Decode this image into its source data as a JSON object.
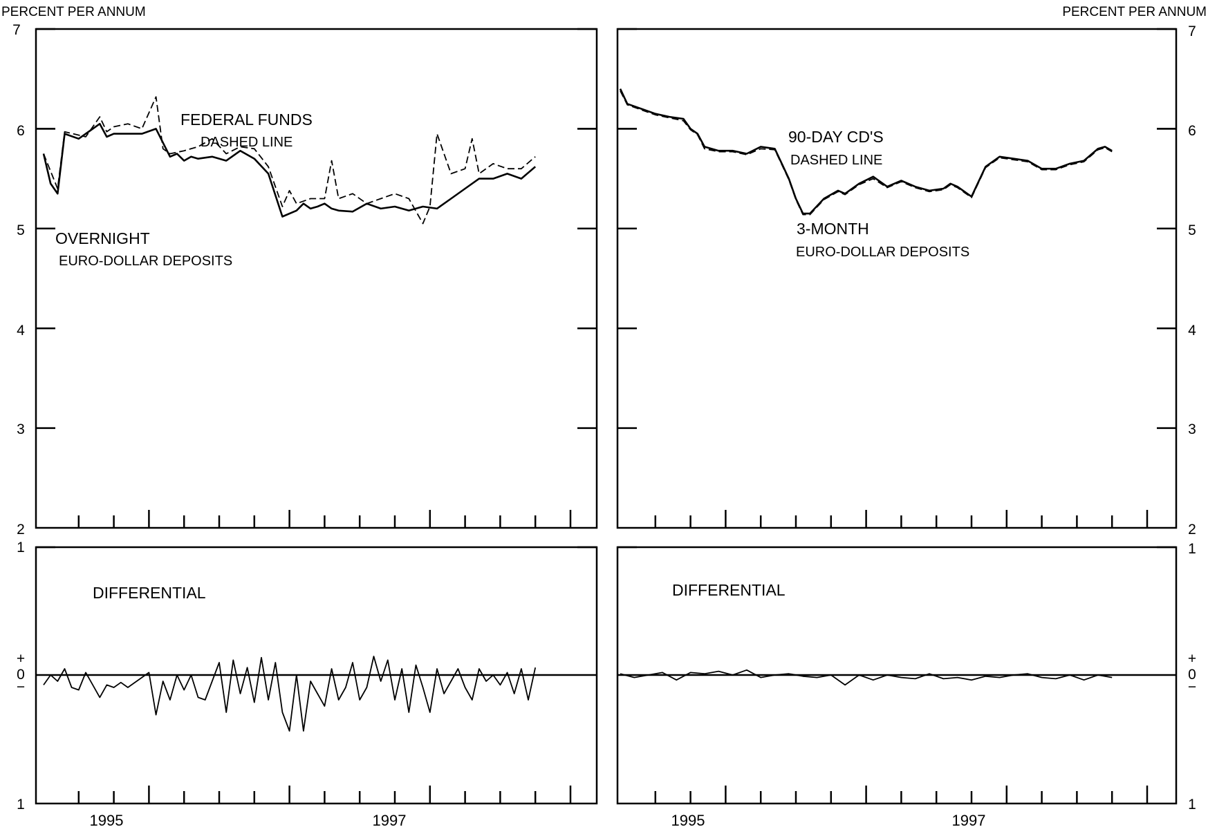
{
  "chart_data": [
    {
      "type": "line",
      "title": "",
      "ylabel": "PERCENT PER ANNUM",
      "xlabel": "",
      "xlim": [
        1994,
        1999.5
      ],
      "ylim": [
        2,
        7
      ],
      "yticks": [
        "2",
        "3",
        "4",
        "5",
        "6",
        "7"
      ],
      "xticks": [
        "1995",
        "1997"
      ],
      "annotations": [
        "FEDERAL FUNDS",
        "DASHED LINE",
        "OVERNIGHT",
        "EURO-DOLLAR DEPOSITS"
      ],
      "series": [
        {
          "name": "OVERNIGHT EURO-DOLLAR DEPOSITS",
          "style": "solid",
          "x": [
            1994.0,
            1994.05,
            1994.1,
            1994.15,
            1994.25,
            1994.3,
            1994.4,
            1994.45,
            1994.5,
            1994.6,
            1994.7,
            1994.8,
            1994.9,
            1994.95,
            1995.0,
            1995.05,
            1995.1,
            1995.2,
            1995.3,
            1995.4,
            1995.5,
            1995.6,
            1995.7,
            1995.8,
            1995.85,
            1995.9,
            1995.95,
            1996.0,
            1996.05,
            1996.1,
            1996.2,
            1996.3,
            1996.4,
            1996.5,
            1996.6,
            1996.7,
            1996.8,
            1996.9,
            1997.0,
            1997.1,
            1997.2,
            1997.3,
            1997.4,
            1997.5
          ],
          "values": [
            5.75,
            5.45,
            5.35,
            5.95,
            5.9,
            5.95,
            6.05,
            5.92,
            5.95,
            5.95,
            5.95,
            6.0,
            5.72,
            5.75,
            5.68,
            5.72,
            5.7,
            5.72,
            5.68,
            5.78,
            5.7,
            5.55,
            5.12,
            5.18,
            5.25,
            5.2,
            5.22,
            5.25,
            5.2,
            5.18,
            5.17,
            5.25,
            5.2,
            5.22,
            5.18,
            5.22,
            5.2,
            5.3,
            5.4,
            5.5,
            5.5,
            5.55,
            5.5,
            5.62
          ]
        },
        {
          "name": "FEDERAL FUNDS",
          "style": "dashed",
          "x": [
            1994.0,
            1994.1,
            1994.15,
            1994.3,
            1994.4,
            1994.45,
            1994.5,
            1994.6,
            1994.7,
            1994.8,
            1994.85,
            1994.9,
            1995.0,
            1995.1,
            1995.2,
            1995.3,
            1995.4,
            1995.5,
            1995.6,
            1995.7,
            1995.75,
            1995.8,
            1995.9,
            1996.0,
            1996.05,
            1996.1,
            1996.2,
            1996.3,
            1996.4,
            1996.5,
            1996.6,
            1996.7,
            1996.75,
            1996.8,
            1996.9,
            1997.0,
            1997.05,
            1997.1,
            1997.2,
            1997.3,
            1997.4,
            1997.5
          ],
          "values": [
            5.75,
            5.4,
            5.97,
            5.92,
            6.12,
            5.97,
            6.02,
            6.05,
            6.0,
            6.32,
            5.8,
            5.75,
            5.78,
            5.82,
            5.9,
            5.75,
            5.82,
            5.8,
            5.62,
            5.22,
            5.38,
            5.25,
            5.3,
            5.3,
            5.68,
            5.3,
            5.35,
            5.25,
            5.3,
            5.35,
            5.3,
            5.05,
            5.22,
            5.95,
            5.55,
            5.6,
            5.9,
            5.55,
            5.65,
            5.6,
            5.6,
            5.72
          ]
        }
      ]
    },
    {
      "type": "line",
      "title": "",
      "ylabel": "PERCENT PER ANNUM",
      "xlabel": "",
      "xlim": [
        1994,
        1999.5
      ],
      "ylim": [
        2,
        7
      ],
      "yticks": [
        "2",
        "3",
        "4",
        "5",
        "6",
        "7"
      ],
      "xticks": [
        "1995",
        "1997"
      ],
      "annotations": [
        "90-DAY CD'S",
        "DASHED LINE",
        "3-MONTH",
        "EURO-DOLLAR DEPOSITS"
      ],
      "series": [
        {
          "name": "3-MONTH EURO-DOLLAR DEPOSITS",
          "style": "solid",
          "x": [
            1994.0,
            1994.05,
            1994.15,
            1994.25,
            1994.35,
            1994.45,
            1994.5,
            1994.55,
            1994.6,
            1994.7,
            1994.8,
            1994.9,
            1995.0,
            1995.1,
            1995.15,
            1995.2,
            1995.25,
            1995.3,
            1995.35,
            1995.45,
            1995.55,
            1995.6,
            1995.7,
            1995.8,
            1995.9,
            1996.0,
            1996.1,
            1996.2,
            1996.3,
            1996.35,
            1996.4,
            1996.5,
            1996.6,
            1996.7,
            1996.8,
            1996.9,
            1997.0,
            1997.1,
            1997.2,
            1997.3,
            1997.4,
            1997.45,
            1997.5
          ],
          "values": [
            6.4,
            6.25,
            6.2,
            6.15,
            6.12,
            6.1,
            6.0,
            5.95,
            5.82,
            5.78,
            5.78,
            5.75,
            5.82,
            5.8,
            5.65,
            5.5,
            5.3,
            5.15,
            5.15,
            5.3,
            5.38,
            5.35,
            5.45,
            5.52,
            5.42,
            5.48,
            5.42,
            5.38,
            5.4,
            5.45,
            5.42,
            5.32,
            5.62,
            5.72,
            5.7,
            5.68,
            5.6,
            5.6,
            5.65,
            5.68,
            5.8,
            5.82,
            5.78
          ]
        },
        {
          "name": "90-DAY CD'S",
          "style": "dashed",
          "x": [
            1994.0,
            1994.05,
            1994.15,
            1994.25,
            1994.35,
            1994.45,
            1994.5,
            1994.55,
            1994.6,
            1994.7,
            1994.8,
            1994.9,
            1995.0,
            1995.1,
            1995.15,
            1995.2,
            1995.25,
            1995.3,
            1995.35,
            1995.45,
            1995.55,
            1995.6,
            1995.7,
            1995.8,
            1995.9,
            1996.0,
            1996.1,
            1996.2,
            1996.3,
            1996.35,
            1996.4,
            1996.5,
            1996.6,
            1996.7,
            1996.8,
            1996.9,
            1997.0,
            1997.1,
            1997.2,
            1997.3,
            1997.4,
            1997.45,
            1997.5
          ],
          "values": [
            6.38,
            6.24,
            6.19,
            6.14,
            6.11,
            6.08,
            5.99,
            5.94,
            5.8,
            5.77,
            5.77,
            5.74,
            5.8,
            5.79,
            5.64,
            5.49,
            5.29,
            5.14,
            5.14,
            5.29,
            5.37,
            5.34,
            5.44,
            5.5,
            5.41,
            5.47,
            5.41,
            5.37,
            5.39,
            5.44,
            5.41,
            5.31,
            5.61,
            5.71,
            5.69,
            5.67,
            5.59,
            5.59,
            5.64,
            5.67,
            5.79,
            5.81,
            5.77
          ]
        }
      ]
    },
    {
      "type": "line",
      "title": "DIFFERENTIAL",
      "xlabel": "",
      "xlim": [
        1994,
        1999.5
      ],
      "ylim": [
        -1,
        1
      ],
      "yticks": [
        "1",
        "+",
        "0",
        "−",
        "1"
      ],
      "xticks": [
        "1995",
        "1997"
      ],
      "series": [
        {
          "name": "",
          "x": [
            1994.0,
            1994.05,
            1994.1,
            1994.15,
            1994.2,
            1994.25,
            1994.3,
            1994.4,
            1994.45,
            1994.5,
            1994.55,
            1994.6,
            1994.7,
            1994.75,
            1994.8,
            1994.85,
            1994.9,
            1994.95,
            1995.0,
            1995.05,
            1995.1,
            1995.15,
            1995.2,
            1995.25,
            1995.3,
            1995.35,
            1995.4,
            1995.45,
            1995.5,
            1995.55,
            1995.6,
            1995.65,
            1995.7,
            1995.75,
            1995.8,
            1995.85,
            1995.9,
            1995.95,
            1996.0,
            1996.05,
            1996.1,
            1996.15,
            1996.2,
            1996.25,
            1996.3,
            1996.35,
            1996.4,
            1996.45,
            1996.5,
            1996.55,
            1996.6,
            1996.65,
            1996.7,
            1996.75,
            1996.8,
            1996.85,
            1996.9,
            1996.95,
            1997.0,
            1997.05,
            1997.1,
            1997.15,
            1997.2,
            1997.25,
            1997.3,
            1997.35,
            1997.4,
            1997.45,
            1997.5
          ],
          "values": [
            -0.08,
            0.0,
            -0.05,
            0.05,
            -0.1,
            -0.12,
            0.02,
            -0.18,
            -0.08,
            -0.1,
            -0.06,
            -0.1,
            -0.02,
            0.02,
            -0.32,
            -0.05,
            -0.2,
            0.0,
            -0.12,
            0.0,
            -0.18,
            -0.2,
            -0.05,
            0.1,
            -0.3,
            0.12,
            -0.15,
            0.06,
            -0.22,
            0.14,
            -0.2,
            0.1,
            -0.3,
            -0.45,
            0.0,
            -0.45,
            -0.05,
            -0.15,
            -0.25,
            0.05,
            -0.2,
            -0.1,
            0.1,
            -0.2,
            -0.1,
            0.15,
            -0.05,
            0.12,
            -0.2,
            0.05,
            -0.3,
            0.08,
            -0.1,
            -0.3,
            0.05,
            -0.15,
            -0.05,
            0.05,
            -0.1,
            -0.2,
            0.05,
            -0.05,
            0.0,
            -0.08,
            0.02,
            -0.15,
            0.05,
            -0.2,
            0.06
          ]
        }
      ]
    },
    {
      "type": "line",
      "title": "DIFFERENTIAL",
      "xlabel": "",
      "xlim": [
        1994,
        1999.5
      ],
      "ylim": [
        -1,
        1
      ],
      "yticks": [
        "1",
        "+",
        "0",
        "−",
        "1"
      ],
      "xticks": [
        "1995",
        "1997"
      ],
      "series": [
        {
          "name": "",
          "x": [
            1994.0,
            1994.1,
            1994.2,
            1994.3,
            1994.4,
            1994.5,
            1994.6,
            1994.7,
            1994.8,
            1994.9,
            1995.0,
            1995.1,
            1995.2,
            1995.3,
            1995.4,
            1995.5,
            1995.6,
            1995.7,
            1995.8,
            1995.9,
            1996.0,
            1996.1,
            1996.2,
            1996.3,
            1996.4,
            1996.5,
            1996.6,
            1996.7,
            1996.8,
            1996.9,
            1997.0,
            1997.1,
            1997.2,
            1997.3,
            1997.4,
            1997.5
          ],
          "values": [
            0.01,
            -0.02,
            0.0,
            0.02,
            -0.04,
            0.02,
            0.01,
            0.03,
            0.0,
            0.04,
            -0.02,
            0.0,
            0.01,
            -0.01,
            -0.02,
            0.0,
            -0.08,
            0.0,
            -0.04,
            0.0,
            -0.02,
            -0.03,
            0.01,
            -0.03,
            -0.02,
            -0.04,
            -0.01,
            -0.02,
            0.0,
            0.01,
            -0.02,
            -0.03,
            0.0,
            -0.04,
            0.0,
            -0.02
          ]
        }
      ]
    }
  ]
}
